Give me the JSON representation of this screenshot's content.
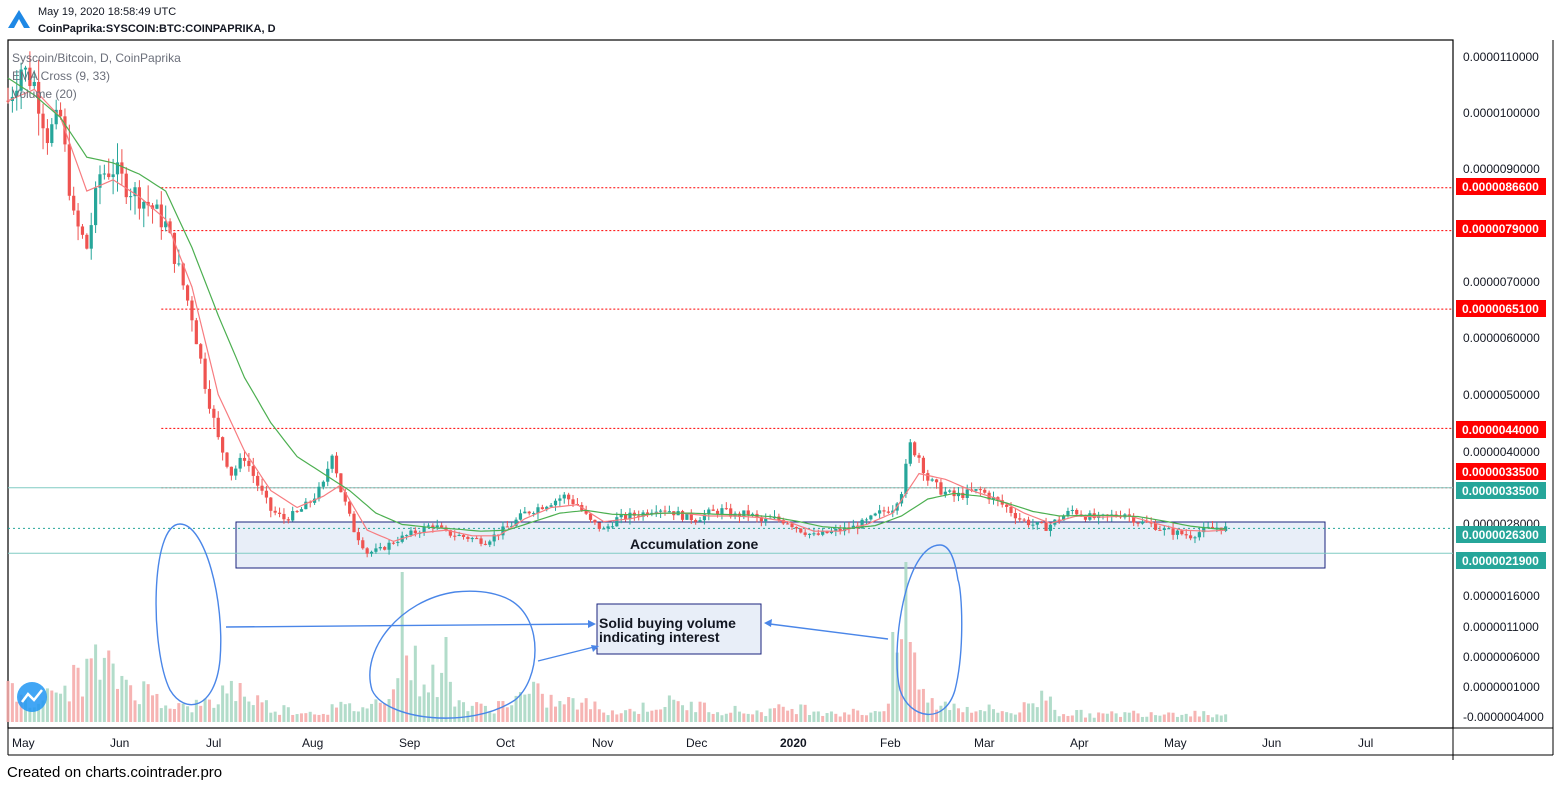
{
  "header": {
    "timestamp": "May 19, 2020 18:58:49 UTC",
    "symbol": "CoinPaprika:SYSCOIN:BTC:COINPAPRIKA, D"
  },
  "legend": {
    "title": "Syscoin/Bitcoin, D, CoinPaprika",
    "ema": "EMA Cross (9, 33)",
    "volume": "Volume (20)"
  },
  "footer": "Created on charts.cointrader.pro",
  "colors": {
    "up": "#26a69a",
    "down": "#ef5350",
    "ema_fast": "#f77c80",
    "ema_slow": "#4caf50",
    "level": "#ff0000",
    "zone_fill": "#e8eef8",
    "zone_border": "#1a237e",
    "annotation": "#4a86e8"
  },
  "chart_data": {
    "type": "candlestick",
    "price_axis": {
      "ticks": [
        "0.0000110000",
        "0.0000100000",
        "0.0000090000",
        "0.0000070000",
        "0.0000060000",
        "0.0000050000",
        "0.0000040000",
        "0.0000028000",
        "0.0000016000",
        "0.0000011000",
        "0.0000006000",
        "0.0000001000",
        "-0.0000004000"
      ]
    },
    "time_axis": {
      "labels": [
        "May",
        "Jun",
        "Jul",
        "Aug",
        "Sep",
        "Oct",
        "Nov",
        "Dec",
        "2020",
        "Feb",
        "Mar",
        "Apr",
        "May",
        "Jun",
        "Jul"
      ]
    },
    "price_series": [
      [
        0,
        10.2
      ],
      [
        6,
        10.8
      ],
      [
        12,
        10.5
      ],
      [
        18,
        9.6
      ],
      [
        24,
        9.9
      ],
      [
        30,
        8.1
      ],
      [
        36,
        7.6
      ],
      [
        42,
        8.9
      ],
      [
        48,
        9.0
      ],
      [
        54,
        8.7
      ],
      [
        60,
        8.5
      ],
      [
        66,
        8.3
      ],
      [
        72,
        8.0
      ],
      [
        78,
        7.2
      ],
      [
        84,
        6.4
      ],
      [
        90,
        5.2
      ],
      [
        96,
        4.2
      ],
      [
        102,
        3.6
      ],
      [
        108,
        3.9
      ],
      [
        114,
        3.4
      ],
      [
        120,
        2.95
      ],
      [
        126,
        2.8
      ],
      [
        132,
        2.9
      ],
      [
        138,
        3.1
      ],
      [
        144,
        3.4
      ],
      [
        148,
        4.0
      ],
      [
        152,
        3.3
      ],
      [
        158,
        2.6
      ],
      [
        164,
        2.2
      ],
      [
        170,
        2.25
      ],
      [
        176,
        2.4
      ],
      [
        182,
        2.5
      ],
      [
        188,
        2.6
      ],
      [
        194,
        2.7
      ],
      [
        200,
        2.55
      ],
      [
        206,
        2.5
      ],
      [
        212,
        2.45
      ],
      [
        218,
        2.4
      ],
      [
        224,
        2.55
      ],
      [
        230,
        2.7
      ],
      [
        236,
        2.9
      ],
      [
        242,
        3.0
      ],
      [
        248,
        3.1
      ],
      [
        254,
        3.2
      ],
      [
        260,
        3.05
      ],
      [
        266,
        2.75
      ],
      [
        272,
        2.6
      ],
      [
        278,
        2.8
      ],
      [
        284,
        2.85
      ],
      [
        290,
        2.9
      ],
      [
        296,
        3.0
      ],
      [
        302,
        2.95
      ],
      [
        308,
        2.85
      ],
      [
        314,
        2.8
      ],
      [
        320,
        2.9
      ],
      [
        326,
        2.95
      ],
      [
        332,
        2.85
      ],
      [
        338,
        2.9
      ],
      [
        344,
        2.75
      ],
      [
        350,
        2.8
      ],
      [
        356,
        2.75
      ],
      [
        362,
        2.6
      ],
      [
        368,
        2.5
      ],
      [
        374,
        2.55
      ],
      [
        380,
        2.6
      ],
      [
        386,
        2.65
      ],
      [
        392,
        2.75
      ],
      [
        398,
        2.9
      ],
      [
        404,
        3.0
      ],
      [
        408,
        3.3
      ],
      [
        412,
        4.1
      ],
      [
        416,
        3.9
      ],
      [
        420,
        3.5
      ],
      [
        426,
        3.3
      ],
      [
        432,
        3.2
      ],
      [
        438,
        3.25
      ],
      [
        444,
        3.3
      ],
      [
        450,
        3.15
      ],
      [
        456,
        3.0
      ],
      [
        462,
        2.8
      ],
      [
        468,
        2.7
      ],
      [
        474,
        2.65
      ],
      [
        480,
        2.8
      ],
      [
        486,
        2.95
      ],
      [
        492,
        2.85
      ],
      [
        498,
        2.8
      ],
      [
        504,
        2.85
      ],
      [
        510,
        2.9
      ],
      [
        516,
        2.75
      ],
      [
        522,
        2.7
      ],
      [
        528,
        2.6
      ],
      [
        534,
        2.55
      ],
      [
        540,
        2.5
      ],
      [
        546,
        2.6
      ],
      [
        552,
        2.65
      ],
      [
        556,
        2.63
      ]
    ],
    "ema_fast": [
      [
        0,
        10.2
      ],
      [
        12,
        10.4
      ],
      [
        24,
        9.9
      ],
      [
        36,
        8.6
      ],
      [
        48,
        8.8
      ],
      [
        60,
        8.5
      ],
      [
        72,
        8.1
      ],
      [
        84,
        6.9
      ],
      [
        96,
        5.0
      ],
      [
        108,
        4.0
      ],
      [
        120,
        3.3
      ],
      [
        132,
        3.0
      ],
      [
        144,
        3.2
      ],
      [
        152,
        3.4
      ],
      [
        164,
        2.6
      ],
      [
        176,
        2.4
      ],
      [
        188,
        2.55
      ],
      [
        200,
        2.6
      ],
      [
        212,
        2.5
      ],
      [
        224,
        2.5
      ],
      [
        236,
        2.8
      ],
      [
        248,
        3.0
      ],
      [
        260,
        3.05
      ],
      [
        272,
        2.75
      ],
      [
        284,
        2.8
      ],
      [
        296,
        2.9
      ],
      [
        308,
        2.9
      ],
      [
        320,
        2.85
      ],
      [
        332,
        2.85
      ],
      [
        344,
        2.82
      ],
      [
        356,
        2.75
      ],
      [
        368,
        2.58
      ],
      [
        380,
        2.58
      ],
      [
        392,
        2.7
      ],
      [
        404,
        2.9
      ],
      [
        416,
        3.6
      ],
      [
        428,
        3.5
      ],
      [
        440,
        3.3
      ],
      [
        452,
        3.15
      ],
      [
        464,
        2.9
      ],
      [
        476,
        2.72
      ],
      [
        488,
        2.85
      ],
      [
        500,
        2.83
      ],
      [
        512,
        2.85
      ],
      [
        524,
        2.72
      ],
      [
        536,
        2.6
      ],
      [
        548,
        2.58
      ],
      [
        556,
        2.6
      ]
    ],
    "ema_slow": [
      [
        0,
        10.6
      ],
      [
        12,
        10.3
      ],
      [
        24,
        9.9
      ],
      [
        36,
        9.2
      ],
      [
        48,
        9.1
      ],
      [
        60,
        8.9
      ],
      [
        72,
        8.6
      ],
      [
        84,
        7.6
      ],
      [
        96,
        6.4
      ],
      [
        108,
        5.3
      ],
      [
        120,
        4.5
      ],
      [
        132,
        3.9
      ],
      [
        144,
        3.6
      ],
      [
        156,
        3.3
      ],
      [
        168,
        2.9
      ],
      [
        180,
        2.7
      ],
      [
        192,
        2.65
      ],
      [
        204,
        2.62
      ],
      [
        216,
        2.58
      ],
      [
        228,
        2.6
      ],
      [
        240,
        2.75
      ],
      [
        252,
        2.9
      ],
      [
        264,
        2.95
      ],
      [
        276,
        2.88
      ],
      [
        288,
        2.87
      ],
      [
        300,
        2.9
      ],
      [
        312,
        2.9
      ],
      [
        324,
        2.88
      ],
      [
        336,
        2.87
      ],
      [
        348,
        2.84
      ],
      [
        360,
        2.76
      ],
      [
        372,
        2.66
      ],
      [
        384,
        2.63
      ],
      [
        396,
        2.68
      ],
      [
        408,
        2.85
      ],
      [
        420,
        3.15
      ],
      [
        432,
        3.25
      ],
      [
        444,
        3.2
      ],
      [
        456,
        3.08
      ],
      [
        468,
        2.93
      ],
      [
        480,
        2.85
      ],
      [
        492,
        2.86
      ],
      [
        504,
        2.86
      ],
      [
        516,
        2.84
      ],
      [
        528,
        2.76
      ],
      [
        540,
        2.67
      ],
      [
        552,
        2.62
      ],
      [
        556,
        2.62
      ]
    ],
    "volume": [
      [
        0,
        0.6
      ],
      [
        20,
        0.5
      ],
      [
        40,
        1.2
      ],
      [
        60,
        0.7
      ],
      [
        80,
        0.3
      ],
      [
        95,
        0.4
      ],
      [
        100,
        0.8
      ],
      [
        120,
        0.3
      ],
      [
        140,
        0.2
      ],
      [
        150,
        0.3
      ],
      [
        160,
        0.3
      ],
      [
        170,
        0.4
      ],
      [
        180,
        1.5
      ],
      [
        190,
        0.9
      ],
      [
        200,
        0.8
      ],
      [
        210,
        0.3
      ],
      [
        220,
        0.3
      ],
      [
        240,
        0.6
      ],
      [
        250,
        0.4
      ],
      [
        260,
        0.4
      ],
      [
        270,
        0.3
      ],
      [
        280,
        0.2
      ],
      [
        300,
        0.4
      ],
      [
        320,
        0.3
      ],
      [
        340,
        0.2
      ],
      [
        360,
        0.3
      ],
      [
        380,
        0.2
      ],
      [
        395,
        0.2
      ],
      [
        405,
        0.5
      ],
      [
        410,
        3.0
      ],
      [
        415,
        0.9
      ],
      [
        420,
        0.4
      ],
      [
        440,
        0.3
      ],
      [
        460,
        0.2
      ],
      [
        475,
        0.6
      ],
      [
        480,
        0.2
      ],
      [
        500,
        0.15
      ],
      [
        520,
        0.2
      ],
      [
        540,
        0.2
      ],
      [
        556,
        0.15
      ]
    ],
    "price_levels": [
      "0.0000086600",
      "0.0000079000",
      "0.0000065100",
      "0.0000044000",
      "0.0000033500"
    ],
    "cyan_levels": [
      "0.0000033500",
      "0.0000021900"
    ],
    "last_price": "0.0000026300",
    "annotations": {
      "zone_label": "Accumulation zone",
      "callout_line1": "Solid buying volume",
      "callout_line2": "indicating interest"
    }
  }
}
